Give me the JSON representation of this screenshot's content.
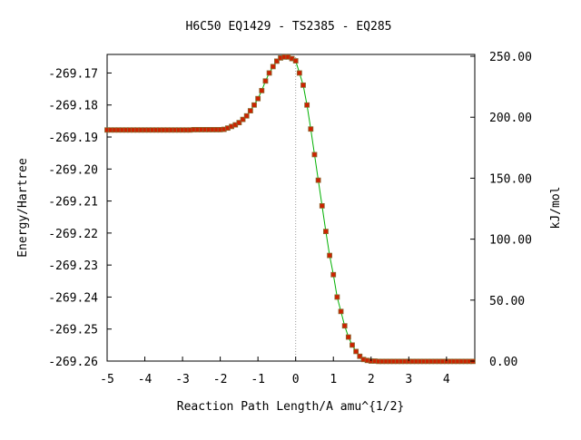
{
  "title": "H6C50   EQ1429 - TS2385 - EQ285",
  "colors": {
    "background": "#ffffff",
    "frame": "#000000",
    "curve": "#00b000",
    "marker_fill": "#cc2200",
    "marker_edge": "#8a6a30",
    "ts_line": "#999999"
  },
  "chart_data": {
    "type": "line",
    "title": "H6C50   EQ1429 - TS2385 - EQ285",
    "xlabel": "Reaction Path Length/A amu^{1/2}",
    "ylabel": "Energy/Hartree",
    "ylabel_right": "kJ/mol",
    "xlim": [
      -5.0,
      4.75
    ],
    "ylim": [
      -269.26,
      -269.1642
    ],
    "ylim_right": [
      0.0,
      251.5
    ],
    "xticks": [
      "-5",
      "-4",
      "-3",
      "-2",
      "-1",
      "0",
      "1",
      "2",
      "3",
      "4"
    ],
    "xtick_values": [
      -5,
      -4,
      -3,
      -2,
      -1,
      0,
      1,
      2,
      3,
      4
    ],
    "yticks": [
      "-269.17",
      "-269.18",
      "-269.19",
      "-269.20",
      "-269.21",
      "-269.22",
      "-269.23",
      "-269.24",
      "-269.25",
      "-269.26"
    ],
    "ytick_values": [
      -269.17,
      -269.18,
      -269.19,
      -269.2,
      -269.21,
      -269.22,
      -269.23,
      -269.24,
      -269.25,
      -269.26
    ],
    "yticks_right": [
      "250.00",
      "200.00",
      "150.00",
      "100.00",
      "50.00",
      "0.00"
    ],
    "ytick_right_values": [
      250,
      200,
      150,
      100,
      50,
      0
    ],
    "ts_x": 0.0,
    "grid": false,
    "series": [
      {
        "x": [
          -5.0,
          -4.9,
          -4.8,
          -4.7,
          -4.6,
          -4.5,
          -4.4,
          -4.3,
          -4.2,
          -4.1,
          -4.0,
          -3.9,
          -3.8,
          -3.7,
          -3.6,
          -3.5,
          -3.4,
          -3.3,
          -3.2,
          -3.1,
          -3.0,
          -2.9,
          -2.8,
          -2.7,
          -2.6,
          -2.5,
          -2.4,
          -2.3,
          -2.2,
          -2.1,
          -2.0,
          -1.9,
          -1.8,
          -1.7,
          -1.6,
          -1.5,
          -1.4,
          -1.3,
          -1.2,
          -1.1,
          -1.0,
          -0.9,
          -0.8,
          -0.7,
          -0.6,
          -0.5,
          -0.4,
          -0.3,
          -0.2,
          -0.1,
          0.0,
          0.1,
          0.2,
          0.3,
          0.4,
          0.5,
          0.6,
          0.7,
          0.8,
          0.9,
          1.0,
          1.1,
          1.2,
          1.3,
          1.4,
          1.5,
          1.6,
          1.7,
          1.8,
          1.9,
          2.0,
          2.1,
          2.2,
          2.3,
          2.4,
          2.5,
          2.6,
          2.7,
          2.8,
          2.9,
          3.0,
          3.1,
          3.2,
          3.3,
          3.4,
          3.5,
          3.6,
          3.7,
          3.8,
          3.9,
          4.0,
          4.1,
          4.2,
          4.3,
          4.4,
          4.5,
          4.6,
          4.7
        ],
        "y": [
          -269.1878,
          -269.1878,
          -269.1878,
          -269.1878,
          -269.1878,
          -269.1878,
          -269.1878,
          -269.1878,
          -269.1878,
          -269.1878,
          -269.1878,
          -269.1878,
          -269.1878,
          -269.1878,
          -269.1878,
          -269.1878,
          -269.1878,
          -269.1878,
          -269.1878,
          -269.1878,
          -269.1878,
          -269.1878,
          -269.1878,
          -269.1877,
          -269.1877,
          -269.1877,
          -269.1877,
          -269.1877,
          -269.1877,
          -269.1877,
          -269.1877,
          -269.1876,
          -269.1872,
          -269.1867,
          -269.1862,
          -269.1855,
          -269.1845,
          -269.1834,
          -269.1818,
          -269.18,
          -269.178,
          -269.1755,
          -269.1725,
          -269.17,
          -269.168,
          -269.1663,
          -269.1653,
          -269.165,
          -269.165,
          -269.1655,
          -269.1662,
          -269.17,
          -269.1738,
          -269.18,
          -269.1875,
          -269.1955,
          -269.2035,
          -269.2115,
          -269.2195,
          -269.227,
          -269.233,
          -269.24,
          -269.2445,
          -269.249,
          -269.2525,
          -269.255,
          -269.257,
          -269.2585,
          -269.2595,
          -269.2598,
          -269.26,
          -269.26,
          -269.2601,
          -269.2601,
          -269.2601,
          -269.2601,
          -269.2601,
          -269.2601,
          -269.2601,
          -269.2601,
          -269.2601,
          -269.2601,
          -269.2601,
          -269.2601,
          -269.2601,
          -269.2601,
          -269.2601,
          -269.2601,
          -269.2601,
          -269.2601,
          -269.2601,
          -269.2601,
          -269.2601,
          -269.2601,
          -269.2601,
          -269.2601,
          -269.2601,
          -269.2601
        ]
      }
    ]
  }
}
